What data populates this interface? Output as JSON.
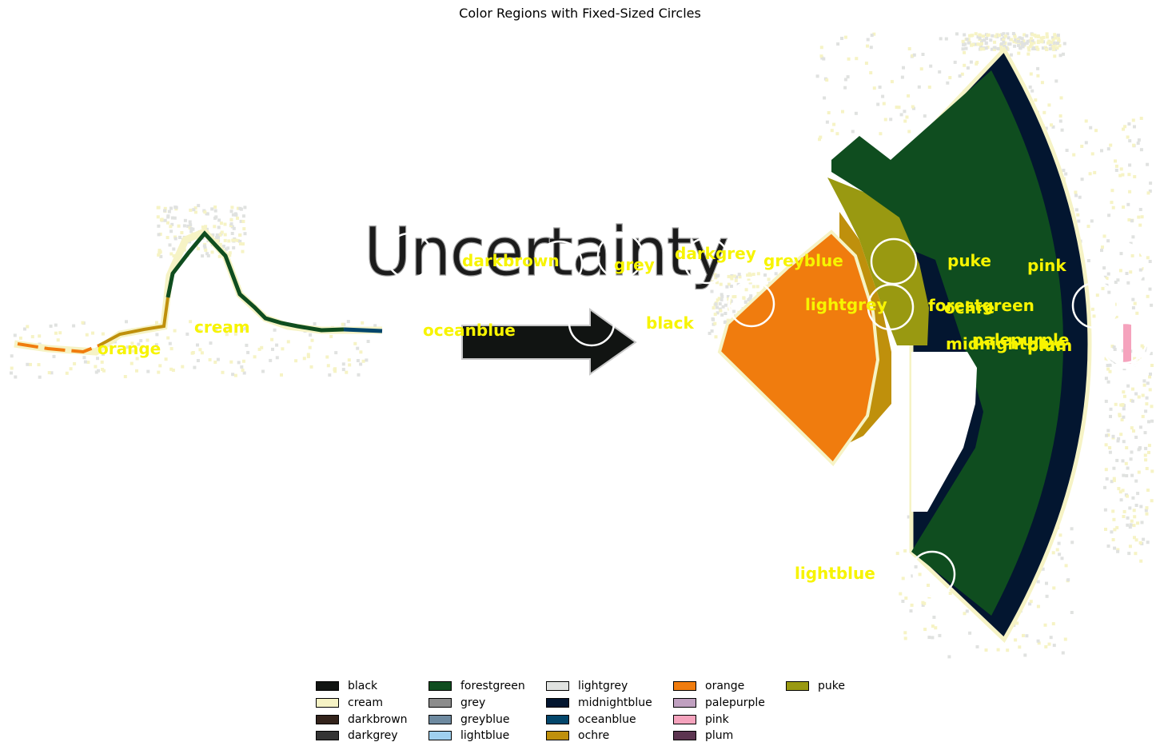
{
  "chart_data": {
    "type": "other",
    "title": "Color Regions with Fixed-Sized Circles",
    "image_text": "Uncertainty",
    "region_labels": [
      "orange",
      "cream",
      "darkbrown",
      "grey",
      "darkgrey",
      "greyblue",
      "oceanblue",
      "black",
      "lightgrey",
      "puke",
      "pink",
      "forestgreen",
      "ochre",
      "palepurple",
      "midnightblue",
      "plum",
      "lightblue"
    ],
    "circle_count": 15,
    "legend": {
      "placement": "bottom-center",
      "columns": 5,
      "entries": [
        {
          "name": "black",
          "color": "#111412"
        },
        {
          "name": "cream",
          "color": "#f6f3c5"
        },
        {
          "name": "darkbrown",
          "color": "#33231b"
        },
        {
          "name": "darkgrey",
          "color": "#343434"
        },
        {
          "name": "forestgreen",
          "color": "#0f4d1f"
        },
        {
          "name": "grey",
          "color": "#8c8c8c"
        },
        {
          "name": "greyblue",
          "color": "#6e8aa0"
        },
        {
          "name": "lightblue",
          "color": "#9fd0ef"
        },
        {
          "name": "lightgrey",
          "color": "#e0e2e0"
        },
        {
          "name": "midnightblue",
          "color": "#031630"
        },
        {
          "name": "oceanblue",
          "color": "#03466b"
        },
        {
          "name": "ochre",
          "color": "#bf900c"
        },
        {
          "name": "orange",
          "color": "#f07c0e"
        },
        {
          "name": "palepurple",
          "color": "#c0a0c0"
        },
        {
          "name": "pink",
          "color": "#f5a3bd"
        },
        {
          "name": "plum",
          "color": "#5c3550"
        },
        {
          "name": "puke",
          "color": "#999911"
        }
      ]
    }
  }
}
